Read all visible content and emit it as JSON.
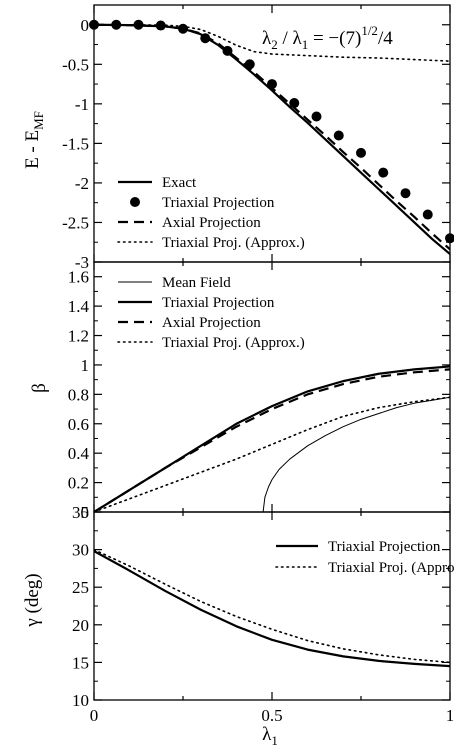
{
  "chart_data": [
    {
      "type": "line",
      "title": "λ2 / λ1 = −(7)^1/2/4",
      "title_parts": {
        "lambda2": "λ",
        "sub2": "2",
        "slash": " / ",
        "lambda1": "λ",
        "sub1": "1",
        "equals": " = −(7)",
        "sup": "1/2",
        "tail": "/4"
      },
      "xlabel": "",
      "ylabel": "E - E_MF",
      "ylabel_parts": {
        "main": "E - E",
        "sub": "MF"
      },
      "xlim": [
        0,
        1
      ],
      "ylim": [
        -3,
        0.25
      ],
      "yticks": [
        -3,
        -2.5,
        -2,
        -1.5,
        -1,
        -0.5,
        0
      ],
      "ytick_labels": [
        "-3",
        "-2.5",
        "-2",
        "-1.5",
        "-1",
        "-0.5",
        "0"
      ],
      "legend_position": "bottom-left",
      "series": [
        {
          "name": "Exact",
          "style": "solid",
          "x": [
            0,
            0.1,
            0.2,
            0.25,
            0.3,
            0.35,
            0.4,
            0.45,
            0.5,
            0.55,
            0.6,
            0.65,
            0.7,
            0.75,
            0.8,
            0.85,
            0.9,
            0.95,
            1.0
          ],
          "y": [
            0,
            -0.005,
            -0.02,
            -0.05,
            -0.12,
            -0.26,
            -0.44,
            -0.63,
            -0.83,
            -1.04,
            -1.24,
            -1.45,
            -1.66,
            -1.87,
            -2.08,
            -2.29,
            -2.5,
            -2.71,
            -2.9
          ]
        },
        {
          "name": "Triaxial Projection",
          "style": "markers",
          "x": [
            0,
            0.0625,
            0.125,
            0.1875,
            0.25,
            0.3125,
            0.375,
            0.4375,
            0.5,
            0.5625,
            0.625,
            0.6875,
            0.75,
            0.8125,
            0.875,
            0.9375,
            1.0
          ],
          "y": [
            0,
            0,
            0,
            -0.01,
            -0.05,
            -0.17,
            -0.33,
            -0.5,
            -0.75,
            -0.99,
            -1.16,
            -1.4,
            -1.62,
            -1.87,
            -2.13,
            -2.4,
            -2.7
          ]
        },
        {
          "name": "Axial Projection",
          "style": "dashed",
          "x": [
            0,
            0.1,
            0.2,
            0.25,
            0.3,
            0.35,
            0.4,
            0.45,
            0.5,
            0.55,
            0.6,
            0.65,
            0.7,
            0.75,
            0.8,
            0.85,
            0.9,
            0.95,
            1.0
          ],
          "y": [
            0,
            -0.005,
            -0.02,
            -0.05,
            -0.11,
            -0.24,
            -0.42,
            -0.6,
            -0.8,
            -1.0,
            -1.2,
            -1.4,
            -1.61,
            -1.81,
            -2.02,
            -2.23,
            -2.43,
            -2.64,
            -2.84
          ]
        },
        {
          "name": "Triaxial Proj. (Approx.)",
          "style": "dotted",
          "x": [
            0,
            0.1,
            0.2,
            0.25,
            0.3,
            0.35,
            0.4,
            0.45,
            0.5,
            0.6,
            0.7,
            0.8,
            0.9,
            1.0
          ],
          "y": [
            0,
            0,
            -0.005,
            -0.02,
            -0.06,
            -0.15,
            -0.26,
            -0.34,
            -0.37,
            -0.39,
            -0.41,
            -0.42,
            -0.44,
            -0.46
          ]
        }
      ]
    },
    {
      "type": "line",
      "xlabel": "",
      "ylabel": "β",
      "xlim": [
        0,
        1
      ],
      "ylim": [
        0,
        1.7
      ],
      "yticks": [
        0,
        0.2,
        0.4,
        0.6,
        0.8,
        1,
        1.2,
        1.4,
        1.6
      ],
      "ytick_labels": [
        "0",
        "0.2",
        "0.4",
        "0.6",
        "0.8",
        "1",
        "1.2",
        "1.4",
        "1.6"
      ],
      "legend_position": "top-left",
      "series": [
        {
          "name": "Mean Field",
          "style": "thin",
          "x": [
            0,
            0.475,
            0.48,
            0.49,
            0.5,
            0.52,
            0.55,
            0.6,
            0.65,
            0.7,
            0.75,
            0.8,
            0.85,
            0.9,
            0.95,
            1.0
          ],
          "y": [
            0,
            0,
            0.1,
            0.17,
            0.22,
            0.29,
            0.36,
            0.45,
            0.52,
            0.58,
            0.63,
            0.67,
            0.71,
            0.74,
            0.76,
            0.78
          ]
        },
        {
          "name": "Triaxial Projection",
          "style": "solid",
          "x": [
            0,
            0.1,
            0.2,
            0.3,
            0.4,
            0.5,
            0.6,
            0.7,
            0.8,
            0.9,
            1.0
          ],
          "y": [
            0,
            0.15,
            0.3,
            0.45,
            0.6,
            0.72,
            0.82,
            0.89,
            0.94,
            0.97,
            0.99
          ]
        },
        {
          "name": "Axial Projection",
          "style": "dashed",
          "x": [
            0,
            0.1,
            0.2,
            0.3,
            0.4,
            0.5,
            0.6,
            0.7,
            0.8,
            0.9,
            1.0
          ],
          "y": [
            0,
            0.15,
            0.3,
            0.44,
            0.58,
            0.7,
            0.8,
            0.87,
            0.92,
            0.95,
            0.97
          ]
        },
        {
          "name": "Triaxial Proj. (Approx.)",
          "style": "dotted",
          "x": [
            0,
            0.1,
            0.2,
            0.3,
            0.4,
            0.5,
            0.6,
            0.7,
            0.8,
            0.9,
            1.0
          ],
          "y": [
            0,
            0.09,
            0.18,
            0.27,
            0.36,
            0.46,
            0.56,
            0.65,
            0.71,
            0.75,
            0.78
          ]
        }
      ]
    },
    {
      "type": "line",
      "xlabel": "λ1",
      "xlabel_parts": {
        "main": "λ",
        "sub": "1"
      },
      "ylabel": "γ (deg)",
      "xlim": [
        0,
        1
      ],
      "ylim": [
        10,
        35
      ],
      "xticks": [
        0,
        0.5,
        1
      ],
      "xtick_labels": [
        "0",
        "0.5",
        "1"
      ],
      "yticks": [
        10,
        15,
        20,
        25,
        30,
        35
      ],
      "ytick_labels": [
        "10",
        "15",
        "20",
        "25",
        "30",
        "35"
      ],
      "legend_position": "top-right",
      "series": [
        {
          "name": "Triaxial Projection",
          "style": "solid",
          "x": [
            0,
            0.1,
            0.2,
            0.3,
            0.4,
            0.5,
            0.6,
            0.7,
            0.8,
            0.9,
            1.0
          ],
          "y": [
            29.8,
            27.2,
            24.5,
            22.0,
            19.8,
            18.0,
            16.7,
            15.8,
            15.2,
            14.8,
            14.5
          ]
        },
        {
          "name": "Triaxial Proj. (Approx.)",
          "style": "dotted",
          "x": [
            0,
            0.1,
            0.2,
            0.3,
            0.4,
            0.5,
            0.6,
            0.7,
            0.8,
            0.9,
            1.0
          ],
          "y": [
            30.0,
            27.8,
            25.4,
            23.1,
            21.1,
            19.4,
            17.9,
            16.8,
            16.0,
            15.4,
            15.0
          ]
        }
      ]
    }
  ]
}
